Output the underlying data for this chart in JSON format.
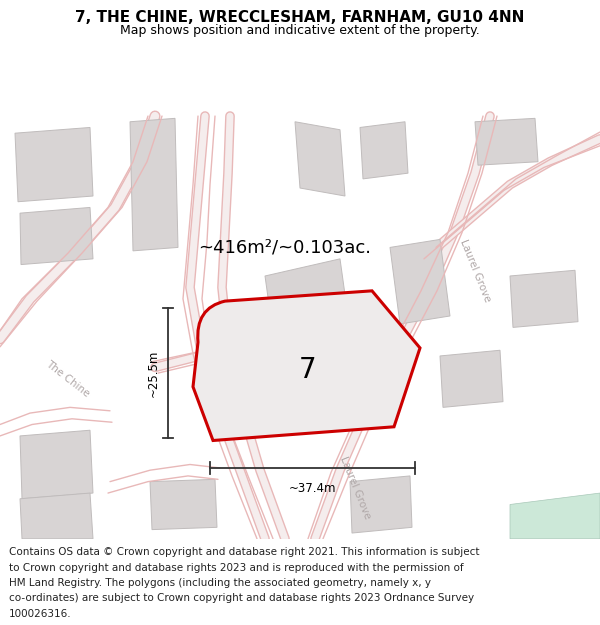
{
  "title_line1": "7, THE CHINE, WRECCLESHAM, FARNHAM, GU10 4NN",
  "title_line2": "Map shows position and indicative extent of the property.",
  "area_label": "~416m²/~0.103ac.",
  "plot_number": "7",
  "dim_width": "~37.4m",
  "dim_height": "~25.5m",
  "footer_lines": [
    "Contains OS data © Crown copyright and database right 2021. This information is subject",
    "to Crown copyright and database rights 2023 and is reproduced with the permission of",
    "HM Land Registry. The polygons (including the associated geometry, namely x, y",
    "co-ordinates) are subject to Crown copyright and database rights 2023 Ordnance Survey",
    "100026316."
  ],
  "map_bg": "#f8f4f4",
  "plot_fill": "#eeebeb",
  "plot_edge": "#cc0000",
  "road_color": "#e8b8b8",
  "road_fill": "#f8f0f0",
  "building_fill": "#d8d4d4",
  "building_edge": "#c0bcbc",
  "green_fill": "#cce8d8",
  "street_label_color": "#b0a8a8",
  "title_fontsize": 11,
  "subtitle_fontsize": 9,
  "footer_fontsize": 7.5
}
